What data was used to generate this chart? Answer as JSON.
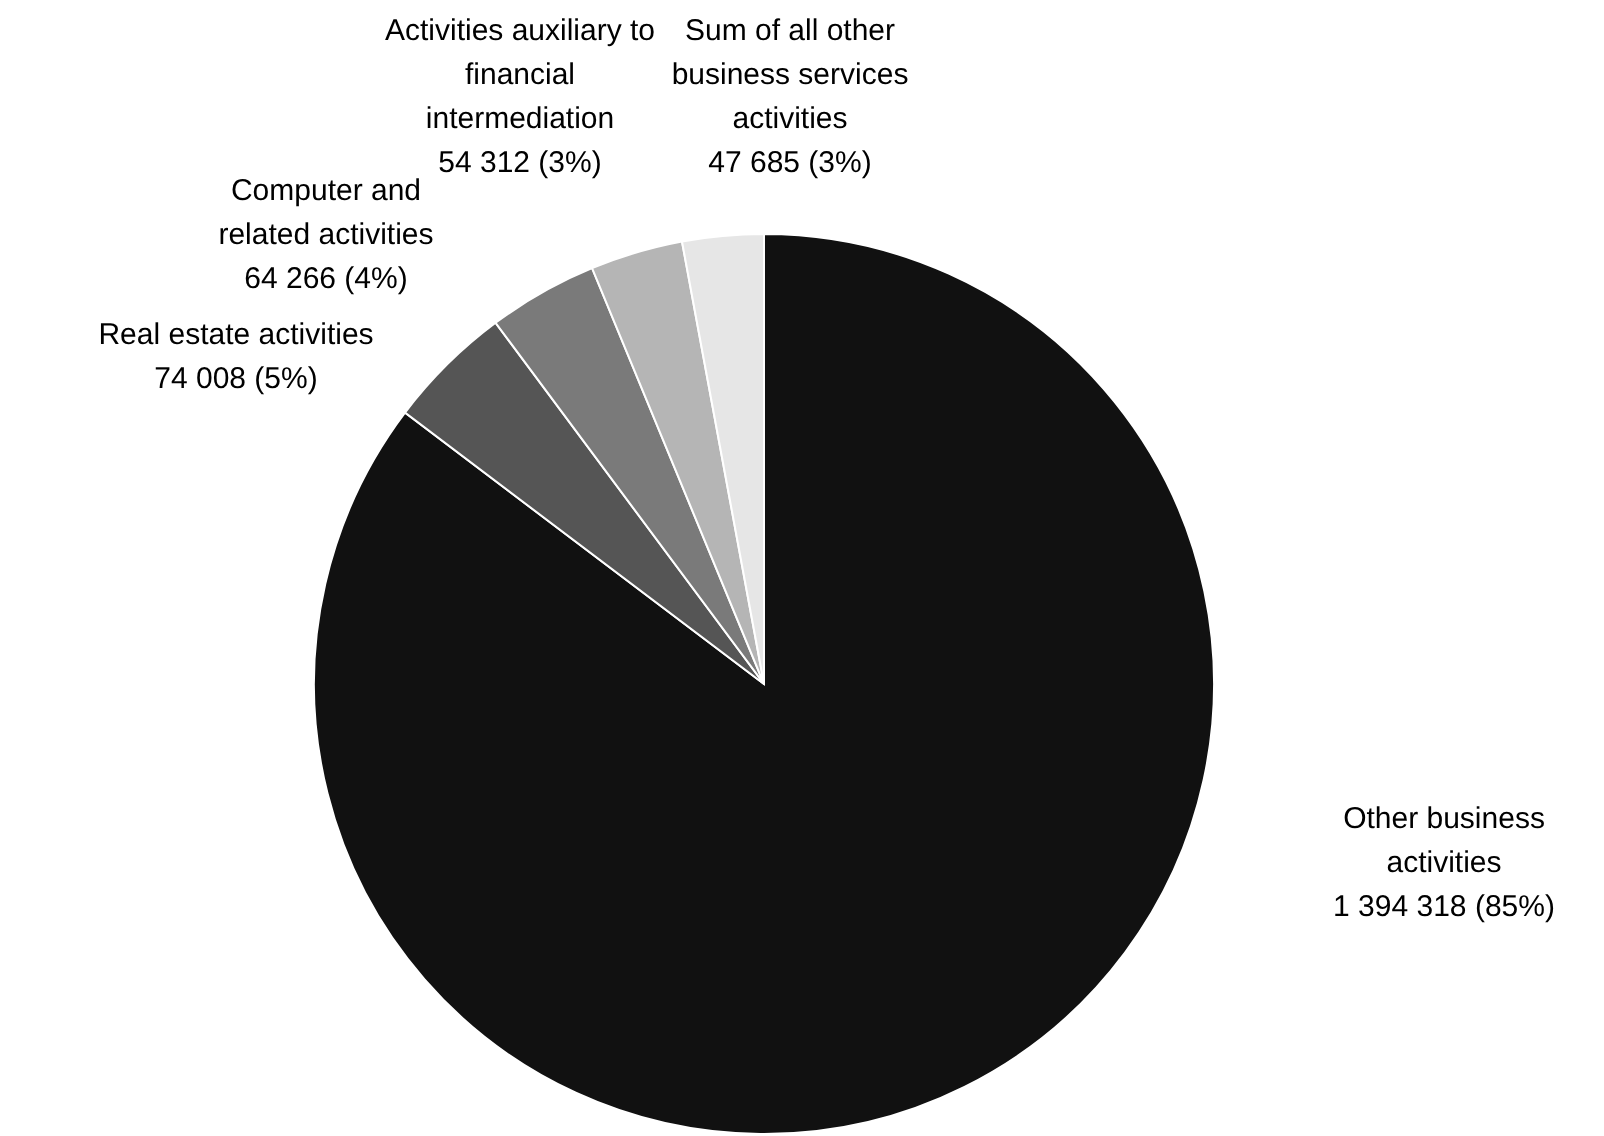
{
  "chart_data": {
    "type": "pie",
    "categories": [
      "Other business\nactivities",
      "Real estate activities",
      "Computer and\nrelated activities",
      "Activities auxiliary to\nfinancial\nintermediation",
      "Sum of all other\nbusiness services\nactivities"
    ],
    "values": [
      1394318,
      74008,
      64266,
      54312,
      47685
    ],
    "colors": [
      "#111111",
      "#555555",
      "#7a7a7a",
      "#b5b5b5",
      "#e6e6e6"
    ],
    "value_labels": [
      "1 394 318 (85%)",
      "74 008 (5%)",
      "64 266 (4%)",
      "54 312 (3%)",
      "47 685 (3%)"
    ]
  }
}
